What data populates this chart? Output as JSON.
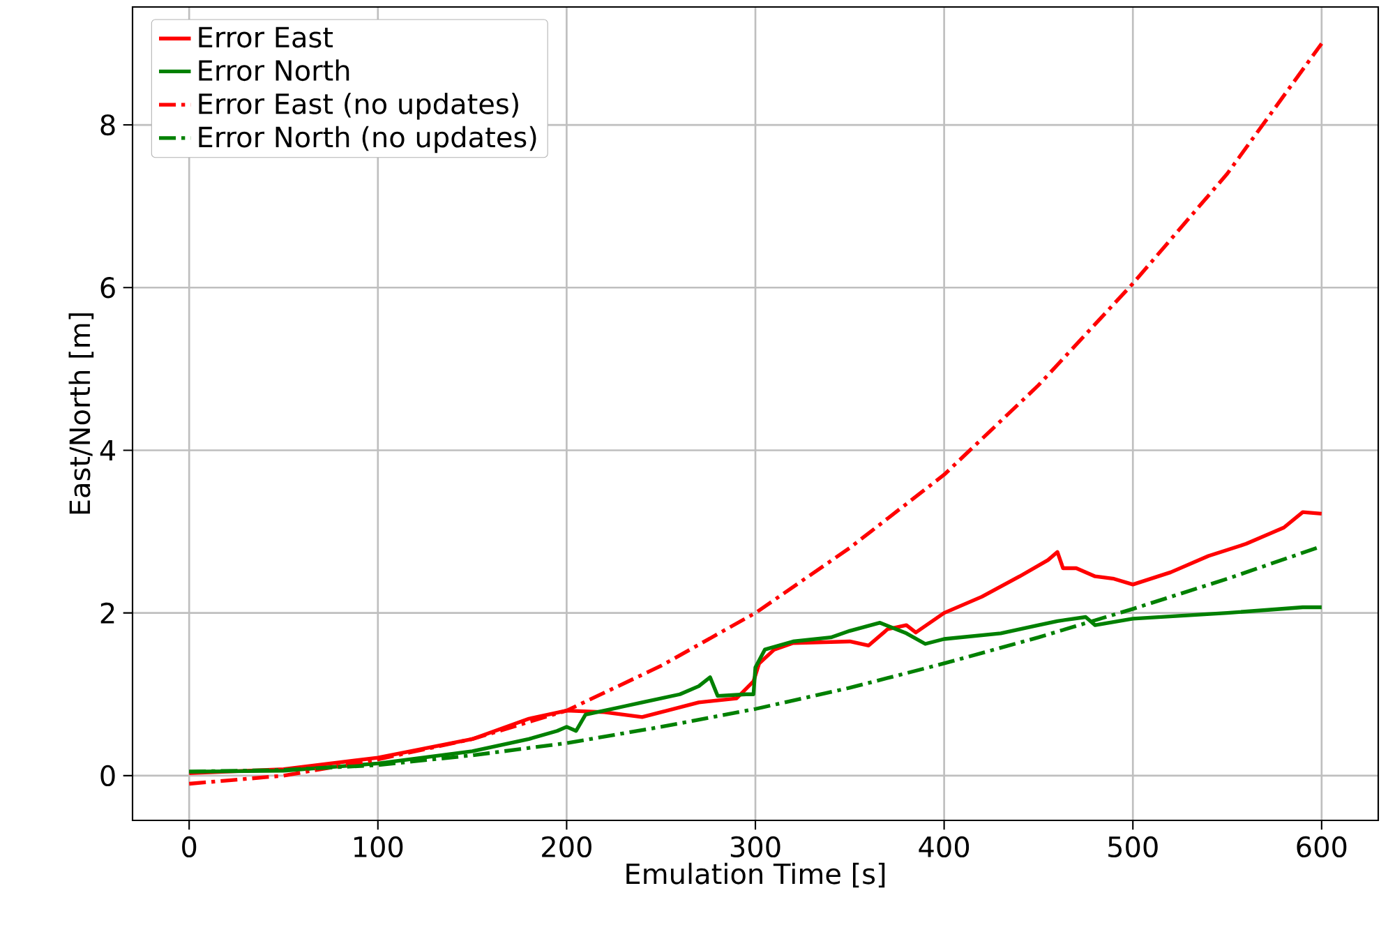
{
  "chart_data": {
    "type": "line",
    "xlabel": "Emulation Time [s]",
    "ylabel": "East/North [m]",
    "xlim": [
      -30,
      630
    ],
    "ylim": [
      -0.55,
      9.45
    ],
    "xticks": [
      0,
      100,
      200,
      300,
      400,
      500,
      600
    ],
    "yticks": [
      0,
      2,
      4,
      6,
      8
    ],
    "grid": true,
    "legend": "top left",
    "marker": "none",
    "series": [
      {
        "name": "Error East",
        "color": "#ff0000",
        "line_style": "solid",
        "x": [
          0,
          50,
          100,
          150,
          180,
          200,
          220,
          240,
          250,
          270,
          290,
          299,
          302,
          310,
          320,
          350,
          360,
          370,
          380,
          385,
          400,
          420,
          440,
          455,
          460,
          463,
          470,
          480,
          490,
          500,
          520,
          540,
          560,
          580,
          590,
          600
        ],
        "values": [
          0.03,
          0.08,
          0.22,
          0.45,
          0.7,
          0.8,
          0.78,
          0.72,
          0.78,
          0.9,
          0.95,
          1.16,
          1.38,
          1.55,
          1.63,
          1.65,
          1.6,
          1.8,
          1.85,
          1.76,
          2.0,
          2.2,
          2.45,
          2.65,
          2.75,
          2.55,
          2.55,
          2.45,
          2.42,
          2.35,
          2.5,
          2.7,
          2.85,
          3.05,
          3.24,
          3.22
        ]
      },
      {
        "name": "Error North",
        "color": "#008000",
        "line_style": "solid",
        "x": [
          0,
          50,
          100,
          150,
          180,
          195,
          200,
          205,
          210,
          230,
          240,
          260,
          270,
          276,
          280,
          295,
          299,
          300,
          305,
          320,
          340,
          350,
          366,
          380,
          390,
          400,
          430,
          450,
          460,
          475,
          480,
          500,
          550,
          590,
          600
        ],
        "values": [
          0.05,
          0.06,
          0.15,
          0.3,
          0.45,
          0.55,
          0.6,
          0.55,
          0.75,
          0.85,
          0.9,
          1.0,
          1.1,
          1.21,
          0.98,
          1.0,
          1.0,
          1.33,
          1.55,
          1.65,
          1.7,
          1.78,
          1.88,
          1.75,
          1.62,
          1.68,
          1.75,
          1.85,
          1.9,
          1.95,
          1.85,
          1.93,
          2.0,
          2.07,
          2.07
        ]
      },
      {
        "name": "Error East (no updates)",
        "color": "#ff0000",
        "line_style": "dashdot",
        "x": [
          0,
          50,
          100,
          150,
          200,
          250,
          300,
          350,
          400,
          450,
          500,
          550,
          600
        ],
        "values": [
          -0.1,
          0.0,
          0.2,
          0.45,
          0.8,
          1.35,
          2.0,
          2.8,
          3.7,
          4.8,
          6.05,
          7.4,
          9.0
        ]
      },
      {
        "name": "Error North (no updates)",
        "color": "#008000",
        "line_style": "dashdot",
        "x": [
          0,
          50,
          100,
          150,
          200,
          250,
          300,
          350,
          400,
          450,
          500,
          550,
          600
        ],
        "values": [
          0.05,
          0.07,
          0.13,
          0.25,
          0.4,
          0.6,
          0.82,
          1.08,
          1.38,
          1.7,
          2.05,
          2.42,
          2.82
        ]
      }
    ]
  }
}
